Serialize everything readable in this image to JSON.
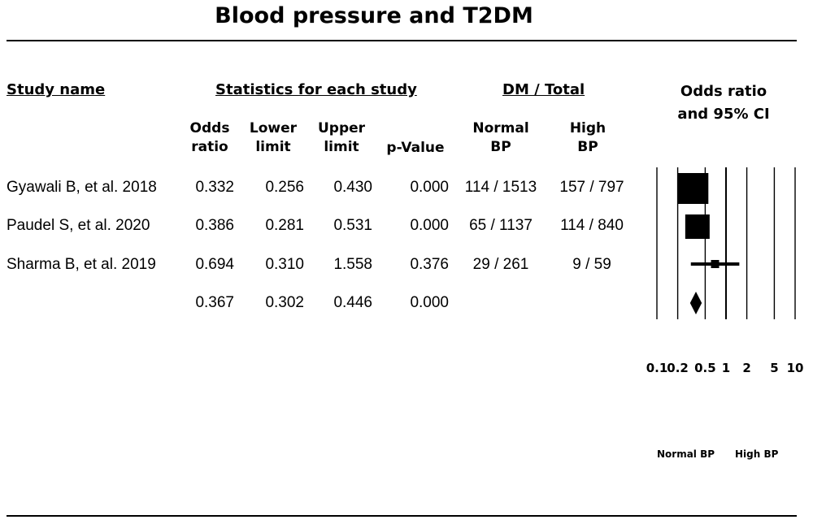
{
  "title": "Blood pressure and T2DM",
  "headers": {
    "study_name": "Study name",
    "statistics": "Statistics for each study",
    "dm_total": "DM / Total",
    "odds_ratio_ci": "Odds ratio\nand 95% CI"
  },
  "columns": {
    "odds_ratio": "Odds\nratio",
    "lower_limit": "Lower\nlimit",
    "upper_limit": "Upper\nlimit",
    "p_value": "p-Value",
    "normal_bp": "Normal\nBP",
    "high_bp": "High\nBP"
  },
  "rows": [
    {
      "study": "Gyawali B, et al. 2018",
      "or": "0.332",
      "lower": "0.256",
      "upper": "0.430",
      "p": "0.000",
      "normal": "114 / 1513",
      "high": "157 / 797"
    },
    {
      "study": "Paudel S, et al. 2020",
      "or": "0.386",
      "lower": "0.281",
      "upper": "0.531",
      "p": "0.000",
      "normal": "65 / 1137",
      "high": "114 / 840"
    },
    {
      "study": "Sharma B, et al. 2019",
      "or": "0.694",
      "lower": "0.310",
      "upper": "1.558",
      "p": "0.376",
      "normal": "29 / 261",
      "high": "9 / 59"
    },
    {
      "study": "",
      "or": "0.367",
      "lower": "0.302",
      "upper": "0.446",
      "p": "0.000",
      "normal": "",
      "high": ""
    }
  ],
  "axis": {
    "ticks": [
      "0.1",
      "0.2",
      "0.5",
      "1",
      "2",
      "5",
      "10"
    ],
    "footer_left": "Normal BP",
    "footer_right": "High BP"
  },
  "chart_data": {
    "type": "forest",
    "title": "Blood pressure and T2DM",
    "xscale": "log",
    "xlim": [
      0.1,
      10
    ],
    "reference_line": 1,
    "studies": [
      {
        "name": "Gyawali B, et al. 2018",
        "or": 0.332,
        "lower": 0.256,
        "upper": 0.43,
        "weight": "large"
      },
      {
        "name": "Paudel S, et al. 2020",
        "or": 0.386,
        "lower": 0.281,
        "upper": 0.531,
        "weight": "medium"
      },
      {
        "name": "Sharma B, et al. 2019",
        "or": 0.694,
        "lower": 0.31,
        "upper": 1.558,
        "weight": "small"
      }
    ],
    "pooled": {
      "or": 0.367,
      "lower": 0.302,
      "upper": 0.446
    }
  }
}
